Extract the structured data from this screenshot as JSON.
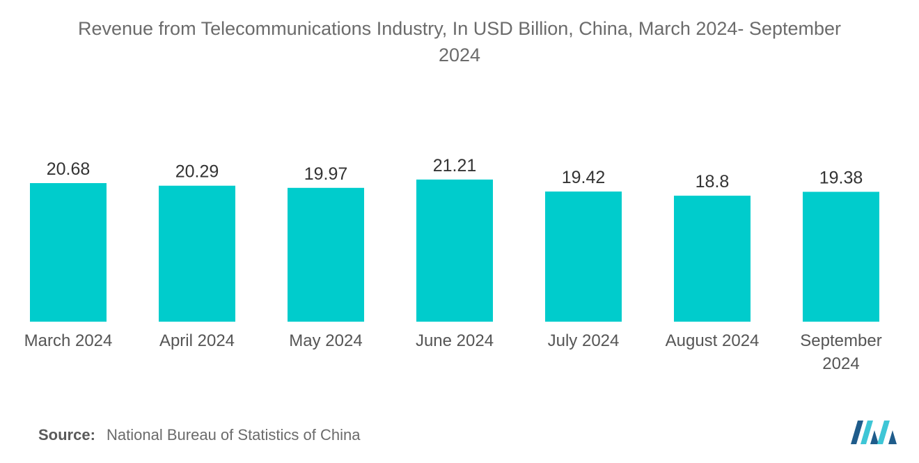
{
  "chart_data": {
    "type": "bar",
    "title_line1": "Revenue from Telecommunications Industry, In USD Billion, China, March 2024- September",
    "title_line2": "2024",
    "categories": [
      [
        "March 2024"
      ],
      [
        "April 2024"
      ],
      [
        "May 2024"
      ],
      [
        "June 2024"
      ],
      [
        "July 2024"
      ],
      [
        "August 2024"
      ],
      [
        "September",
        "2024"
      ]
    ],
    "values": [
      20.68,
      20.29,
      19.97,
      21.21,
      19.42,
      18.8,
      19.38
    ],
    "value_labels": [
      "20.68",
      "20.29",
      "19.97",
      "21.21",
      "19.42",
      "18.8",
      "19.38"
    ],
    "ylim": [
      0,
      22.86
    ],
    "bar_color": "#00cccc",
    "xlabel": "",
    "ylabel": ""
  },
  "source": {
    "label": "Source:",
    "text": "National Bureau of Statistics of China"
  },
  "colors": {
    "text": "#6b6b6b",
    "logo_dark": "#1f5c8b",
    "logo_light": "#3ec6d6"
  }
}
